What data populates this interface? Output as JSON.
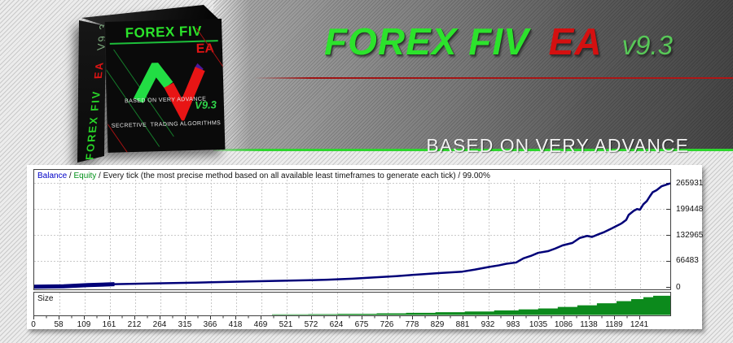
{
  "hero": {
    "title_green": "FOREX FIV",
    "title_red": "EA",
    "title_version": "v9.3",
    "subtitle_line1": "BASED ON VERY ADVANCE",
    "subtitle_line2": "SECRETIVE  TRADING ALGORITHMS",
    "colors": {
      "green": "#2ce32c",
      "red": "#d41010",
      "version_green": "#58c758",
      "red_divider": "#b01616",
      "green_divider": "#2ed52e"
    }
  },
  "product_box": {
    "front": {
      "title": "FOREX FIV",
      "ea": "EA",
      "version": "V9.3",
      "tagline1": "BASED ON VERY ADVANCE",
      "tagline2": "SECRETIVE  TRADING ALGORITHMS"
    },
    "spine": {
      "green_text": "FOREX FIV",
      "red_text": "EA",
      "version": "V9.3"
    }
  },
  "chart": {
    "header": {
      "balance_label": "Balance",
      "equity_label": "Equity",
      "sep": " / ",
      "description": "Every tick (the most precise method based on all available least timeframes to generate each tick)",
      "quality": "99.00%"
    },
    "size_label": "Size",
    "colors": {
      "balance_line": "#000078",
      "balance_label": "#0000c8",
      "equity_label": "#009018",
      "size_fill": "#0c8a1c",
      "grid": "#c9c9c9",
      "frame": "#404040"
    }
  },
  "chart_data": [
    {
      "type": "line",
      "name": "Balance",
      "color": "#000078",
      "xlim": [
        0,
        1300
      ],
      "ylim": [
        0,
        265931
      ],
      "yticks": [
        265931,
        199448,
        132965,
        66483,
        0
      ],
      "xticks": [
        0,
        58,
        109,
        161,
        212,
        264,
        315,
        366,
        418,
        469,
        521,
        572,
        624,
        675,
        726,
        778,
        829,
        881,
        932,
        983,
        1035,
        1086,
        1138,
        1189,
        1241
      ],
      "x": [
        0,
        60,
        110,
        164,
        250,
        330,
        420,
        500,
        560,
        600,
        650,
        700,
        740,
        765,
        800,
        830,
        875,
        900,
        930,
        950,
        965,
        985,
        1000,
        1015,
        1030,
        1050,
        1065,
        1080,
        1100,
        1115,
        1130,
        1140,
        1155,
        1165,
        1180,
        1200,
        1210,
        1215,
        1225,
        1232,
        1238,
        1245,
        1252,
        1258,
        1264,
        1272,
        1282,
        1292,
        1300
      ],
      "y": [
        1500,
        2600,
        5600,
        8000,
        10200,
        12000,
        14600,
        16600,
        18100,
        19600,
        22200,
        25600,
        28600,
        31000,
        34100,
        36600,
        40100,
        45200,
        52200,
        56200,
        60300,
        63500,
        74200,
        80300,
        88200,
        92400,
        99200,
        107300,
        113500,
        126200,
        131400,
        128800,
        136500,
        141200,
        150400,
        163200,
        172500,
        185200,
        195300,
        200100,
        198400,
        212300,
        220400,
        232200,
        243100,
        248300,
        258200,
        262400,
        265931
      ]
    },
    {
      "type": "area",
      "name": "Size",
      "color": "#0c8a1c",
      "xlim": [
        0,
        1300
      ],
      "ylim": [
        0,
        20.5
      ],
      "x": [
        0,
        480,
        486,
        560,
        620,
        700,
        760,
        820,
        880,
        940,
        990,
        1030,
        1070,
        1110,
        1150,
        1190,
        1220,
        1245,
        1265,
        1300
      ],
      "y": [
        0,
        0,
        0.6,
        0.8,
        1.1,
        1.6,
        2.1,
        2.7,
        3.4,
        4.4,
        5.4,
        6.3,
        7.8,
        9.4,
        11.3,
        13.4,
        15.4,
        17.2,
        18.6,
        19.8
      ]
    }
  ]
}
